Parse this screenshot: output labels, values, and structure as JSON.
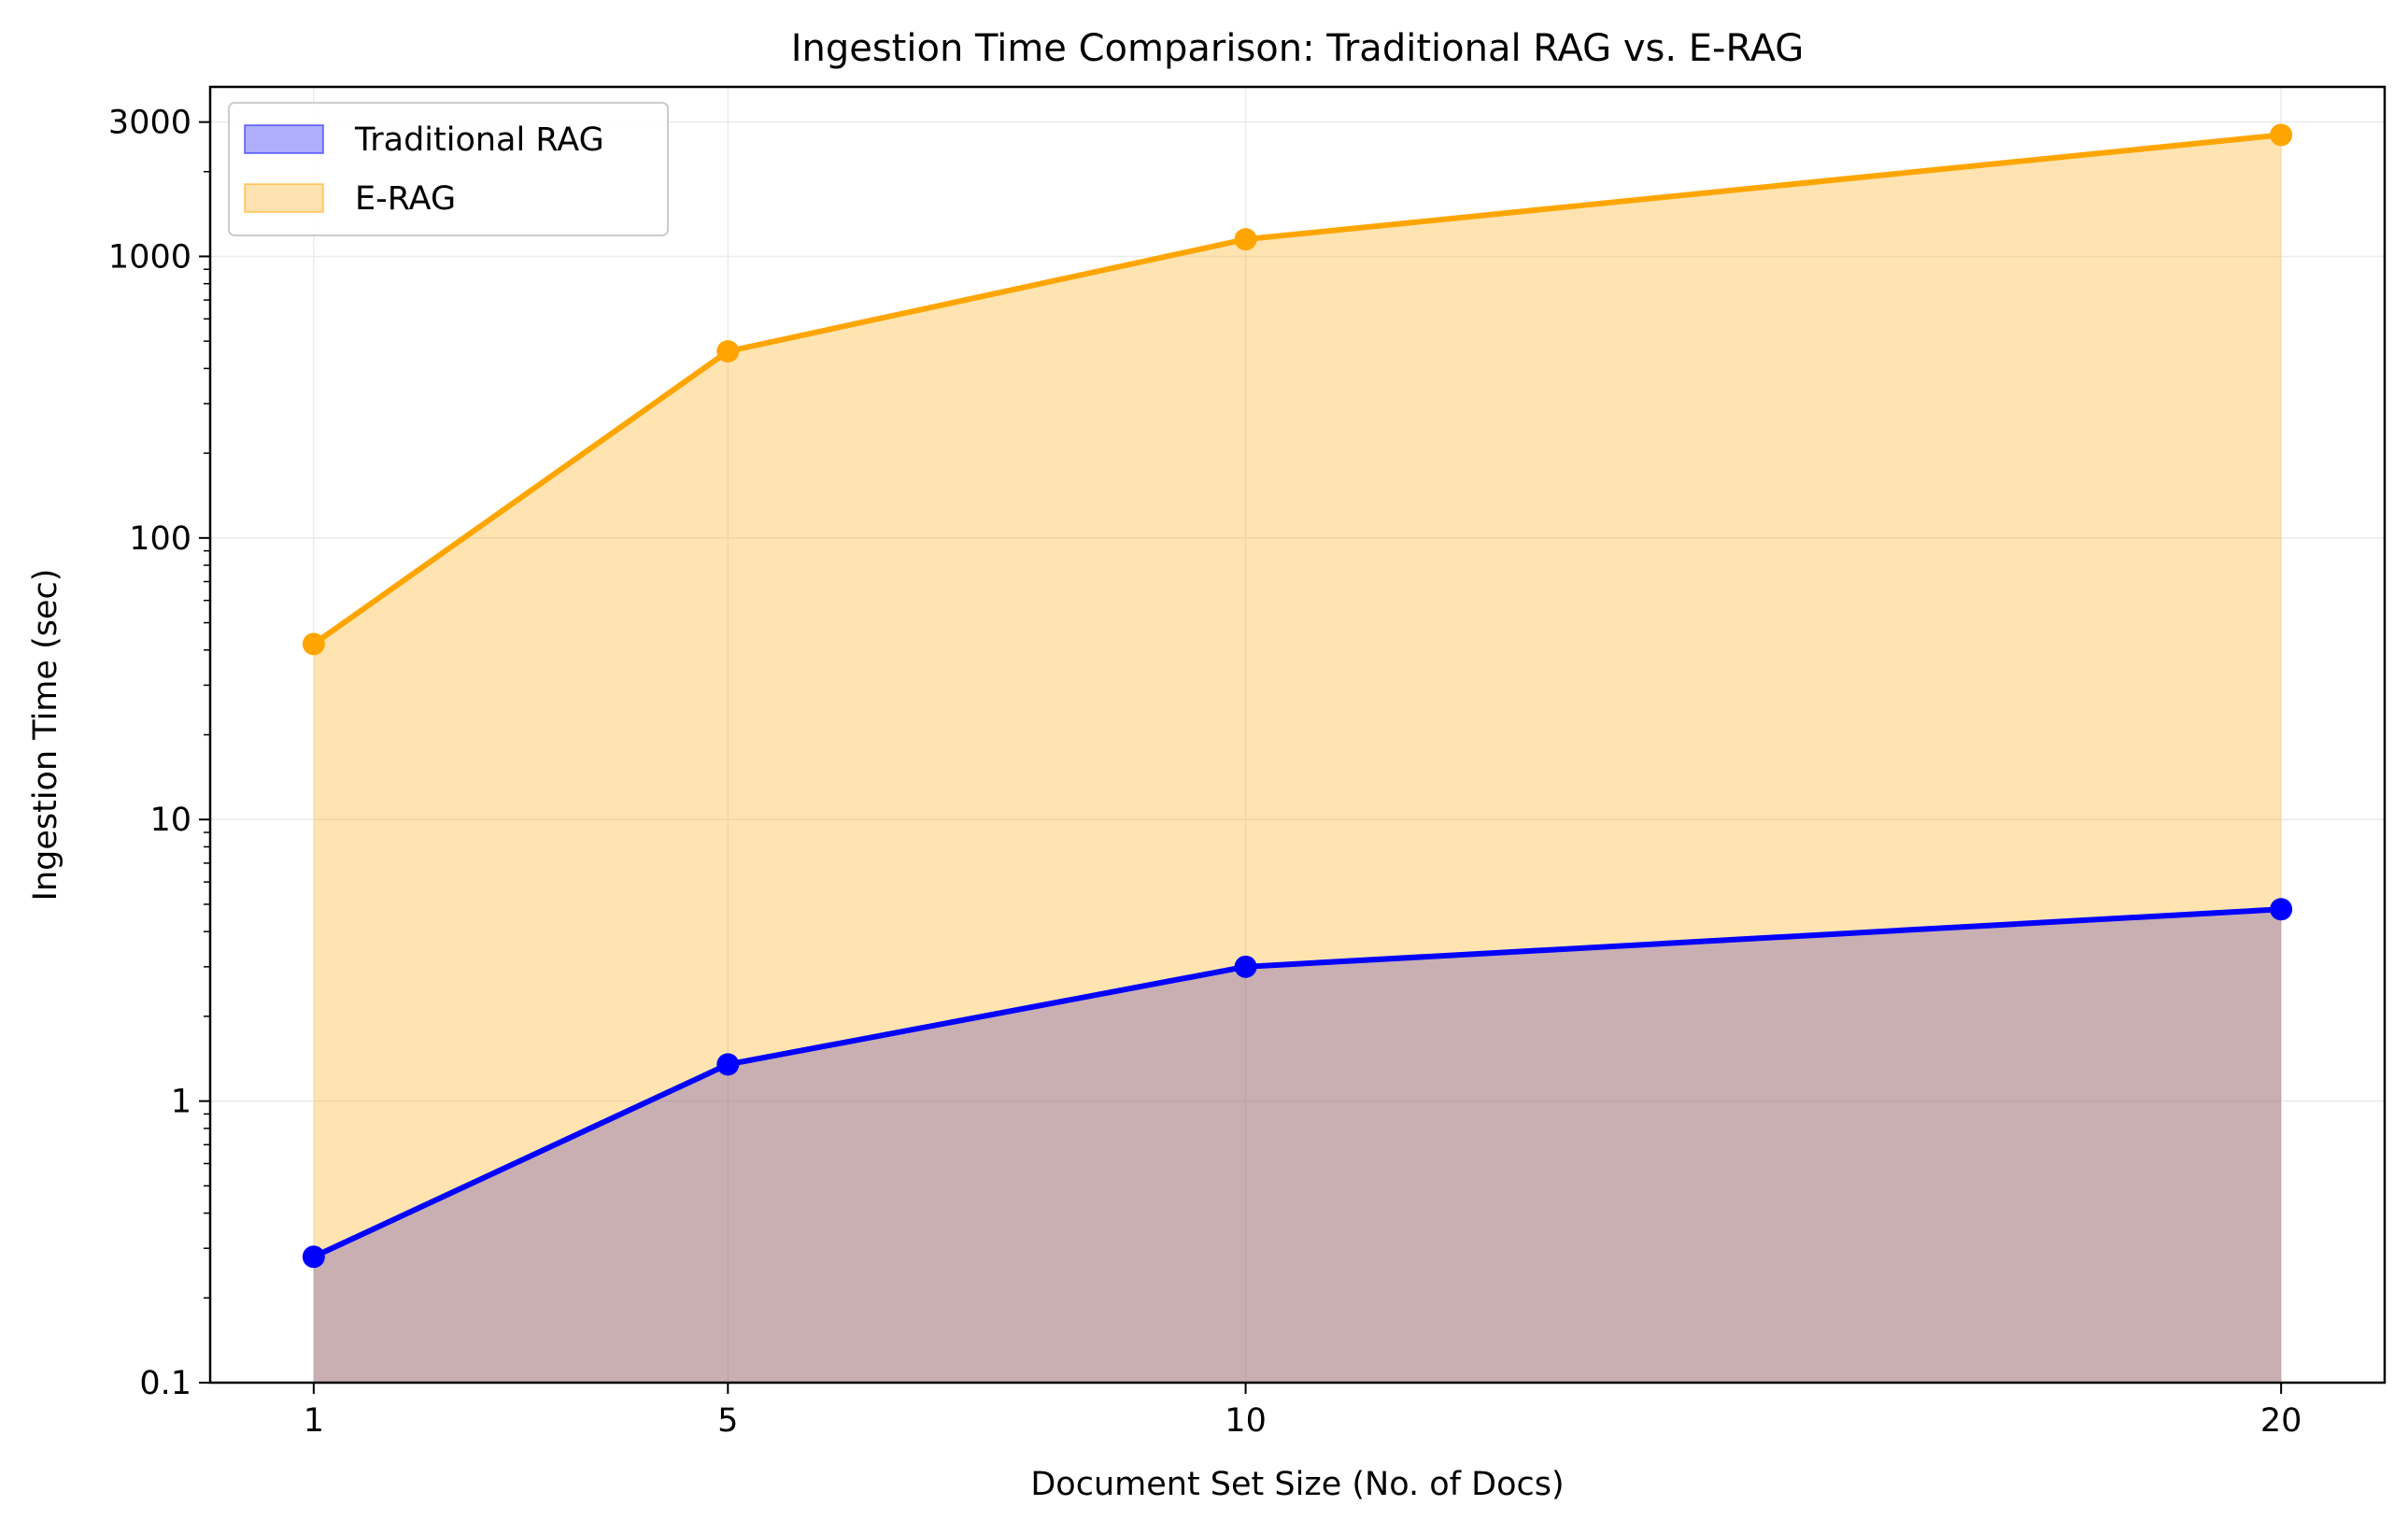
{
  "chart_data": {
    "type": "area",
    "title": "Ingestion Time Comparison: Traditional RAG vs. E-RAG",
    "xlabel": "Document Set Size (No. of Docs)",
    "ylabel": "Ingestion Time (sec)",
    "x": [
      1,
      5,
      10,
      20
    ],
    "xlim": [
      0,
      21
    ],
    "ylim": [
      0.1,
      4000
    ],
    "yscale": "log",
    "xticks": [
      1,
      5,
      10,
      20
    ],
    "yticks": [
      0.1,
      1,
      10,
      100,
      1000,
      3000
    ],
    "ytick_labels": [
      "0.1",
      "1",
      "10",
      "100",
      "1000",
      "3000"
    ],
    "grid": true,
    "legend_position": "top-left",
    "series": [
      {
        "name": "Traditional RAG",
        "values": [
          0.28,
          1.35,
          3.0,
          4.8
        ],
        "color": "#0000ff",
        "fill": "#aeaefc"
      },
      {
        "name": "E-RAG",
        "values": [
          42,
          460,
          1150,
          2700
        ],
        "color": "#ffa500",
        "fill": "#fde1ae"
      }
    ]
  }
}
